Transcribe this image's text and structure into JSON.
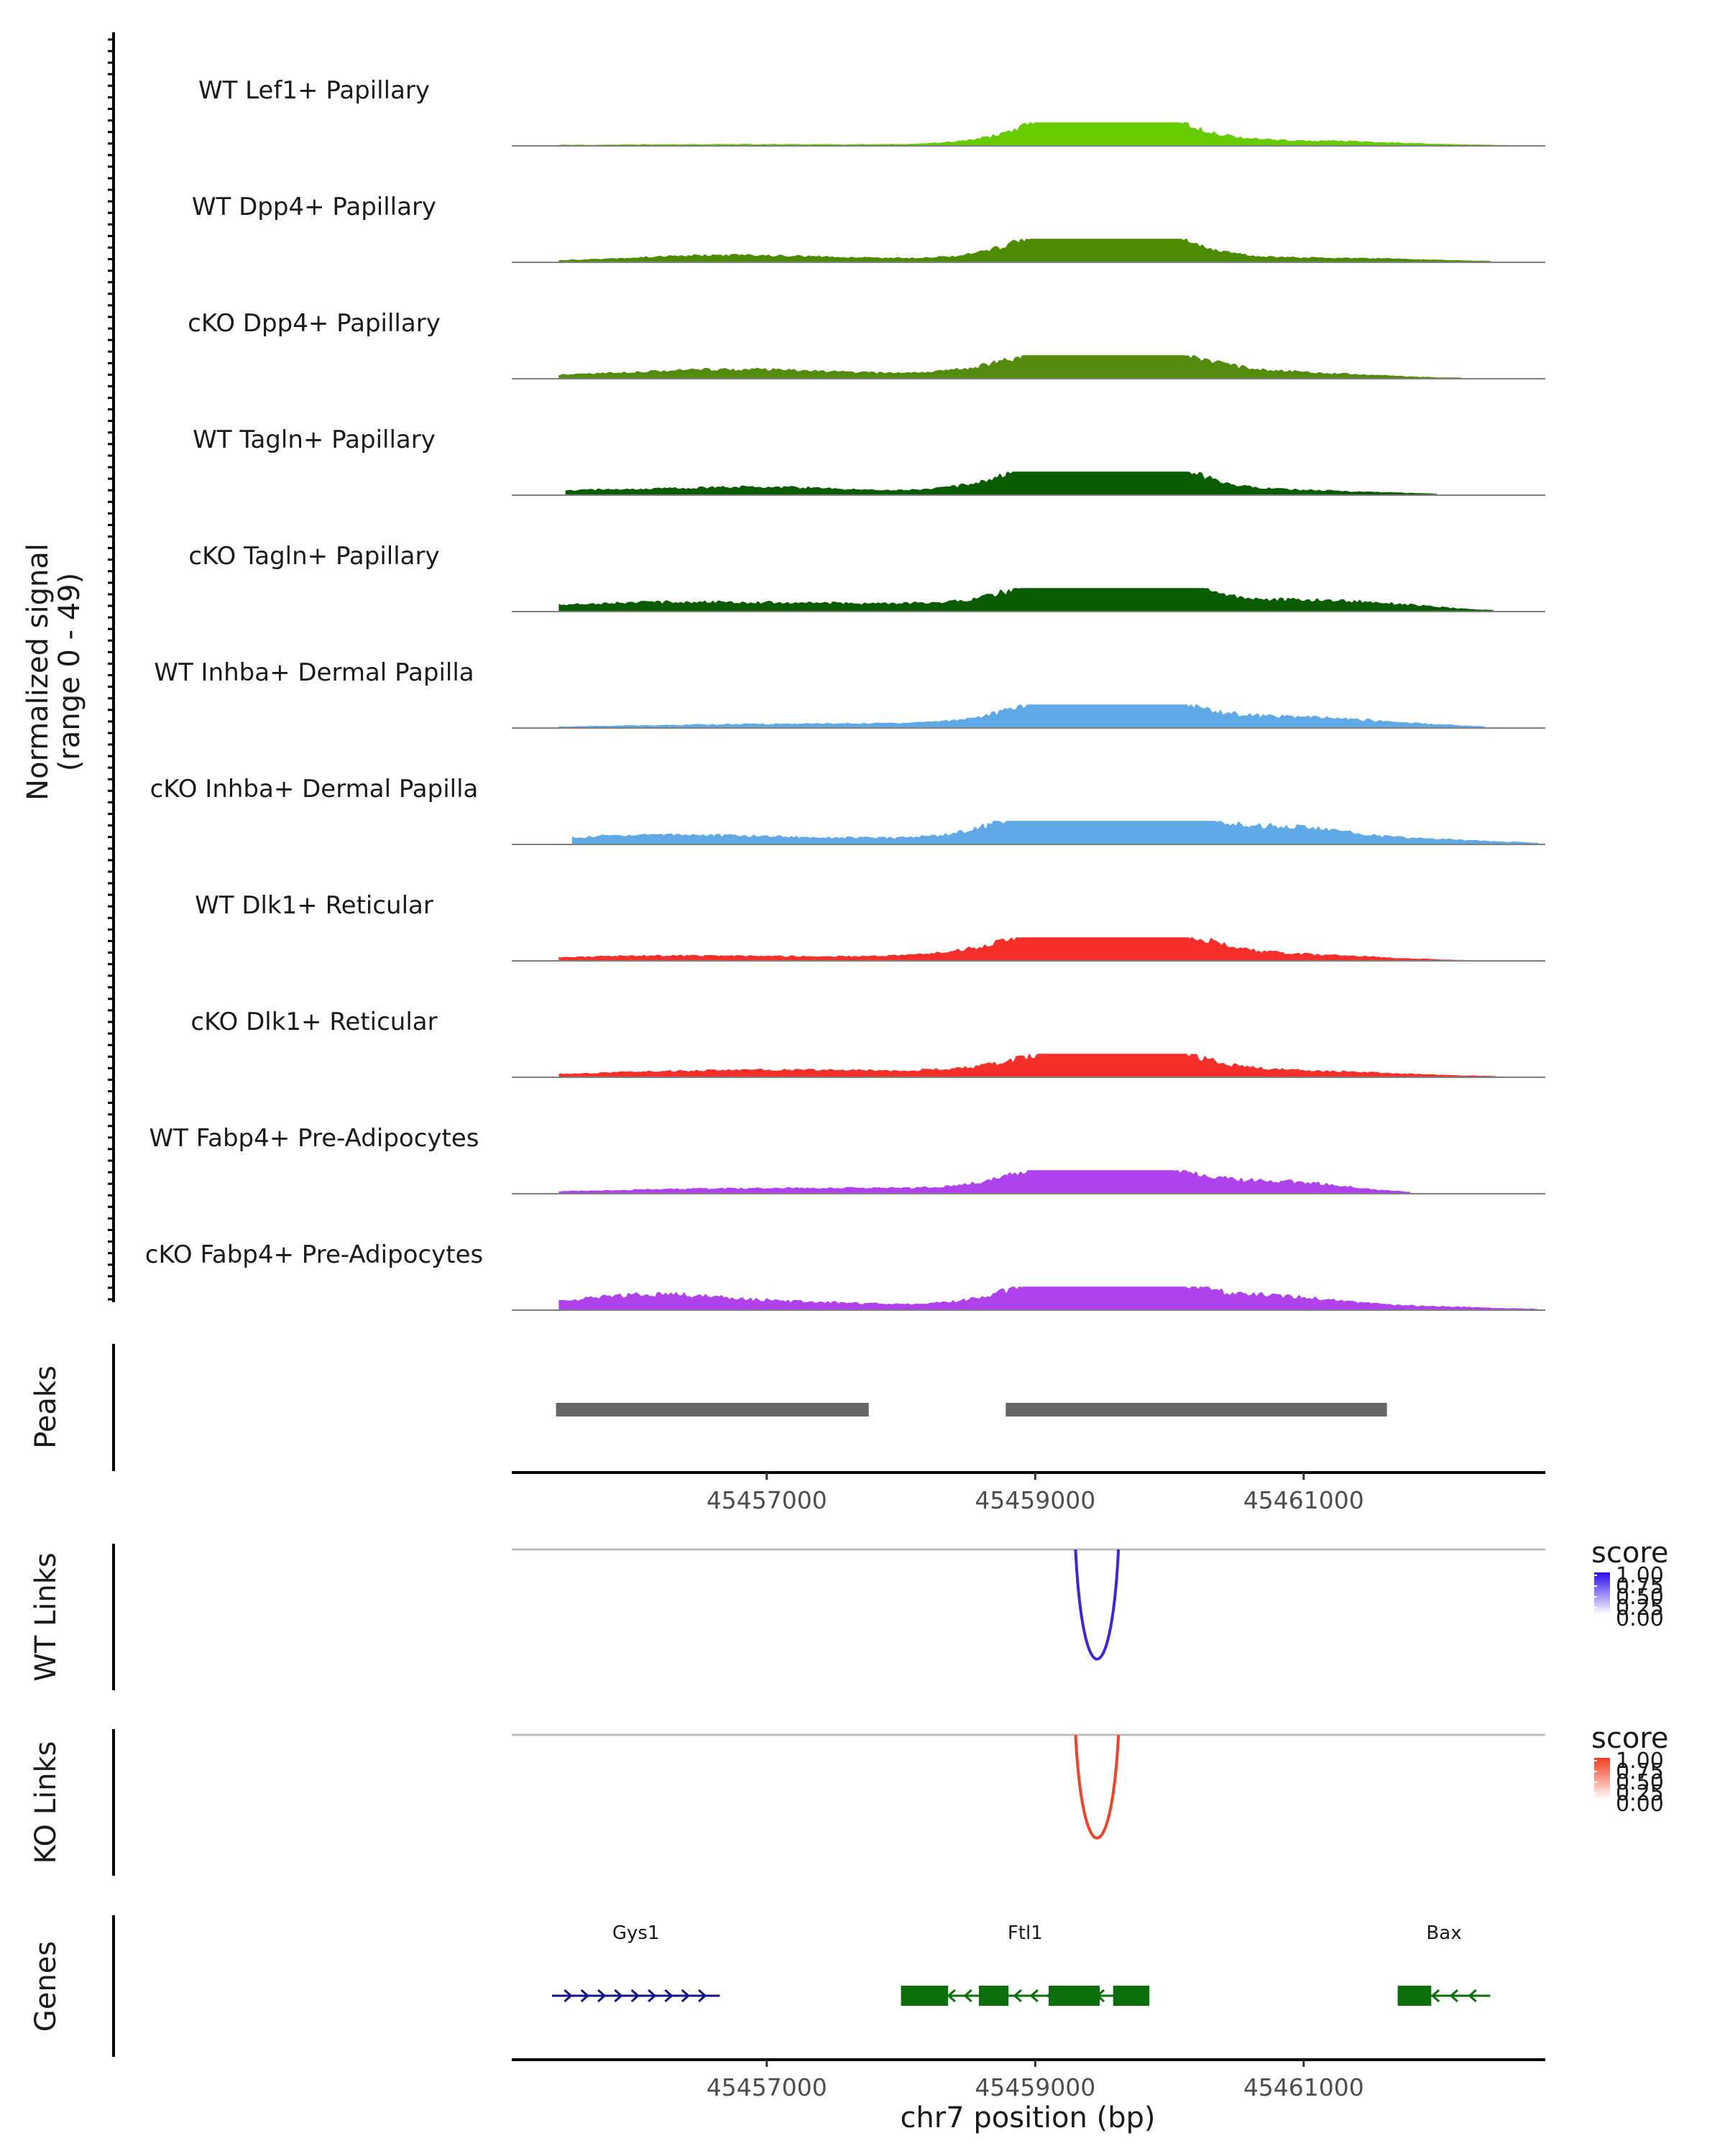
{
  "chart_data": {
    "type": "area",
    "title": "",
    "region": "chr7",
    "xlim": [
      45455100,
      45462800
    ],
    "x_ticks": [
      45457000,
      45459000,
      45461000
    ],
    "x_tick_labels": [
      "45457000",
      "45459000",
      "45461000"
    ],
    "xlabel": "chr7 position (bp)",
    "ylabel_line1": "Normalized signal",
    "ylabel_line2": "(range 0 - 49)",
    "ylim": [
      0,
      49
    ],
    "tracks": [
      {
        "name": "WT Lef1+ Papillary",
        "color": "#66cc00",
        "start": 45455450,
        "end": 45462520,
        "peaks": [
          [
            45456500,
            1.5,
            100
          ],
          [
            45457200,
            1.2,
            90
          ],
          [
            45459100,
            7,
            60
          ],
          [
            45459370,
            13,
            45
          ],
          [
            45459500,
            38,
            45
          ],
          [
            45459580,
            22,
            40
          ],
          [
            45459750,
            15,
            40
          ],
          [
            45460000,
            3,
            40
          ],
          [
            45460450,
            3,
            30
          ],
          [
            45460950,
            7,
            50
          ],
          [
            45461900,
            1.5,
            60
          ],
          [
            45461400,
            2,
            40
          ]
        ]
      },
      {
        "name": "WT Dpp4+ Papillary",
        "color": "#4d8c00",
        "start": 45455450,
        "end": 45462400,
        "peaks": [
          [
            45456300,
            3,
            80
          ],
          [
            45456600,
            4,
            70
          ],
          [
            45456750,
            6,
            60
          ],
          [
            45457400,
            2,
            60
          ],
          [
            45457800,
            2,
            40
          ],
          [
            45458200,
            2,
            50
          ],
          [
            45458800,
            3,
            50
          ],
          [
            45459100,
            10,
            50
          ],
          [
            45459370,
            22,
            35
          ],
          [
            45459480,
            39,
            45
          ],
          [
            45459580,
            25,
            40
          ],
          [
            45459790,
            14,
            40
          ],
          [
            45460000,
            4,
            40
          ],
          [
            45460500,
            3,
            50
          ],
          [
            45460950,
            5,
            50
          ],
          [
            45461500,
            3,
            40
          ],
          [
            45462000,
            2,
            40
          ]
        ]
      },
      {
        "name": "cKO Dpp4+ Papillary",
        "color": "#538c0d",
        "start": 45455450,
        "end": 45462180,
        "peaks": [
          [
            45455700,
            3,
            80
          ],
          [
            45456100,
            3,
            80
          ],
          [
            45456400,
            4,
            70
          ],
          [
            45456800,
            8,
            60
          ],
          [
            45457300,
            4,
            60
          ],
          [
            45457750,
            3,
            50
          ],
          [
            45458300,
            3,
            50
          ],
          [
            45458900,
            3,
            40
          ],
          [
            45459150,
            10,
            50
          ],
          [
            45459370,
            13,
            40
          ],
          [
            45459500,
            35,
            60
          ],
          [
            45459620,
            20,
            40
          ],
          [
            45459800,
            14,
            40
          ],
          [
            45460100,
            3,
            40
          ],
          [
            45460500,
            3,
            40
          ],
          [
            45460950,
            7,
            50
          ],
          [
            45461300,
            3,
            50
          ]
        ]
      },
      {
        "name": "WT Tagln+ Papillary",
        "color": "#0a5c00",
        "start": 45455500,
        "end": 45462000,
        "peaks": [
          [
            45455600,
            5,
            40
          ],
          [
            45456000,
            2,
            60
          ],
          [
            45456300,
            3,
            60
          ],
          [
            45456800,
            8,
            60
          ],
          [
            45457150,
            5,
            50
          ],
          [
            45457600,
            3,
            50
          ],
          [
            45458150,
            2,
            40
          ],
          [
            45458500,
            2,
            40
          ],
          [
            45459000,
            14,
            50
          ],
          [
            45459270,
            12,
            40
          ],
          [
            45459420,
            22,
            40
          ],
          [
            45459520,
            37,
            50
          ],
          [
            45459620,
            20,
            40
          ],
          [
            45459860,
            13,
            40
          ],
          [
            45460200,
            3,
            40
          ],
          [
            45460600,
            3,
            40
          ],
          [
            45460900,
            4,
            40
          ],
          [
            45461100,
            2,
            40
          ],
          [
            45461600,
            3,
            40
          ]
        ]
      },
      {
        "name": "cKO Tagln+ Papillary",
        "color": "#0a5c00",
        "start": 45455450,
        "end": 45462420,
        "peaks": [
          [
            45455650,
            6,
            70
          ],
          [
            45456000,
            5,
            80
          ],
          [
            45456400,
            5,
            80
          ],
          [
            45456800,
            4,
            70
          ],
          [
            45457200,
            4,
            60
          ],
          [
            45457600,
            4,
            60
          ],
          [
            45458000,
            4,
            50
          ],
          [
            45458400,
            4,
            50
          ],
          [
            45458900,
            5,
            50
          ],
          [
            45459150,
            11,
            50
          ],
          [
            45459430,
            45,
            45
          ],
          [
            45459560,
            26,
            40
          ],
          [
            45459700,
            16,
            40
          ],
          [
            45459850,
            20,
            40
          ],
          [
            45460100,
            4,
            40
          ],
          [
            45460500,
            5,
            40
          ],
          [
            45460980,
            13,
            50
          ],
          [
            45461300,
            6,
            50
          ],
          [
            45461700,
            6,
            40
          ]
        ]
      },
      {
        "name": "WT Inhba+ Dermal Papilla",
        "color": "#5fa9e6",
        "start": 45455450,
        "end": 45462350,
        "peaks": [
          [
            45456200,
            2,
            80
          ],
          [
            45456600,
            2,
            70
          ],
          [
            45457000,
            2,
            60
          ],
          [
            45457400,
            2,
            60
          ],
          [
            45457850,
            3,
            50
          ],
          [
            45458300,
            2,
            50
          ],
          [
            45458750,
            2,
            40
          ],
          [
            45459050,
            10,
            60
          ],
          [
            45459300,
            8,
            50
          ],
          [
            45459430,
            32,
            40
          ],
          [
            45459560,
            34,
            45
          ],
          [
            45459820,
            13,
            40
          ],
          [
            45460100,
            5,
            40
          ],
          [
            45460500,
            5,
            40
          ],
          [
            45460930,
            14,
            50
          ],
          [
            45461450,
            6,
            50
          ],
          [
            45461900,
            2,
            40
          ]
        ]
      },
      {
        "name": "cKO Inhba+ Dermal Papilla",
        "color": "#5fa9e6",
        "start": 45455550,
        "end": 45462750,
        "peaks": [
          [
            45455700,
            8,
            50
          ],
          [
            45456000,
            5,
            40
          ],
          [
            45456400,
            6,
            50
          ],
          [
            45456700,
            5,
            50
          ],
          [
            45457000,
            4,
            50
          ],
          [
            45457400,
            5,
            50
          ],
          [
            45457800,
            4,
            40
          ],
          [
            45458200,
            3,
            40
          ],
          [
            45458700,
            4,
            40
          ],
          [
            45459000,
            14,
            50
          ],
          [
            45459250,
            20,
            50
          ],
          [
            45459420,
            33,
            40
          ],
          [
            45459530,
            37,
            45
          ],
          [
            45459800,
            16,
            40
          ],
          [
            45460100,
            8,
            40
          ],
          [
            45460450,
            10,
            40
          ],
          [
            45460800,
            12,
            40
          ],
          [
            45461050,
            15,
            40
          ],
          [
            45461500,
            5,
            50
          ],
          [
            45461950,
            4,
            40
          ],
          [
            45462300,
            3,
            40
          ]
        ]
      },
      {
        "name": "WT Dlk1+ Reticular",
        "color": "#f5302b",
        "start": 45455450,
        "end": 45462200,
        "peaks": [
          [
            45455650,
            3,
            70
          ],
          [
            45456000,
            3,
            60
          ],
          [
            45456400,
            3,
            60
          ],
          [
            45456800,
            3,
            60
          ],
          [
            45457300,
            2,
            50
          ],
          [
            45457800,
            4,
            50
          ],
          [
            45458200,
            2,
            40
          ],
          [
            45458800,
            2,
            50
          ],
          [
            45459050,
            9,
            50
          ],
          [
            45459350,
            15,
            50
          ],
          [
            45459480,
            38,
            60
          ],
          [
            45459650,
            20,
            40
          ],
          [
            45459850,
            15,
            40
          ],
          [
            45460150,
            3,
            40
          ],
          [
            45460550,
            2,
            40
          ],
          [
            45460950,
            8,
            50
          ],
          [
            45461450,
            3,
            40
          ]
        ]
      },
      {
        "name": "cKO Dlk1+ Reticular",
        "color": "#f5302b",
        "start": 45455450,
        "end": 45462450,
        "peaks": [
          [
            45455800,
            3,
            80
          ],
          [
            45456300,
            3,
            70
          ],
          [
            45456800,
            5,
            80
          ],
          [
            45457300,
            5,
            80
          ],
          [
            45457800,
            4,
            60
          ],
          [
            45458500,
            3,
            60
          ],
          [
            45459000,
            6,
            60
          ],
          [
            45459320,
            10,
            50
          ],
          [
            45459500,
            33,
            50
          ],
          [
            45459640,
            22,
            40
          ],
          [
            45459900,
            12,
            40
          ],
          [
            45460200,
            3,
            40
          ],
          [
            45460550,
            3,
            40
          ],
          [
            45460930,
            9,
            50
          ],
          [
            45461450,
            3,
            40
          ],
          [
            45462000,
            2,
            40
          ]
        ]
      },
      {
        "name": "WT Fabp4+ Pre-Adipocytes",
        "color": "#b042ee",
        "start": 45455450,
        "end": 45461800,
        "peaks": [
          [
            45455700,
            2,
            60
          ],
          [
            45456100,
            2,
            60
          ],
          [
            45456400,
            2,
            60
          ],
          [
            45456800,
            4,
            60
          ],
          [
            45457300,
            3,
            50
          ],
          [
            45457800,
            6,
            50
          ],
          [
            45458500,
            3,
            50
          ],
          [
            45459000,
            4,
            50
          ],
          [
            45459150,
            10,
            50
          ],
          [
            45459420,
            26,
            40
          ],
          [
            45459530,
            33,
            50
          ],
          [
            45459800,
            15,
            50
          ],
          [
            45460100,
            5,
            40
          ],
          [
            45460450,
            3,
            40
          ],
          [
            45460920,
            16,
            40
          ],
          [
            45461200,
            4,
            40
          ]
        ]
      },
      {
        "name": "cKO Fabp4+ Pre-Adipocytes",
        "color": "#b042ee",
        "start": 45455450,
        "end": 45462750,
        "peaks": [
          [
            45455700,
            6,
            80
          ],
          [
            45455950,
            10,
            50
          ],
          [
            45456200,
            8,
            50
          ],
          [
            45456450,
            6,
            60
          ],
          [
            45456800,
            4,
            60
          ],
          [
            45457200,
            5,
            60
          ],
          [
            45457600,
            4,
            50
          ],
          [
            45458000,
            3,
            50
          ],
          [
            45458600,
            3,
            50
          ],
          [
            45459050,
            8,
            50
          ],
          [
            45459300,
            16,
            50
          ],
          [
            45459420,
            28,
            40
          ],
          [
            45459550,
            30,
            50
          ],
          [
            45459800,
            10,
            50
          ],
          [
            45460100,
            8,
            50
          ],
          [
            45460400,
            6,
            50
          ],
          [
            45460800,
            5,
            40
          ],
          [
            45460960,
            12,
            40
          ],
          [
            45461400,
            4,
            50
          ],
          [
            45461900,
            3,
            40
          ],
          [
            45462350,
            2,
            40
          ]
        ]
      }
    ],
    "peaks_track": {
      "label": "Peaks",
      "color": "#666666",
      "regions": [
        [
          45455430,
          45457760
        ],
        [
          45458780,
          45461620
        ]
      ]
    },
    "links_tracks": [
      {
        "label": "WT Links",
        "color": "#3d25e3",
        "anchors": [
          45459300,
          45459620
        ],
        "score": 0.85,
        "legend": {
          "title": "score",
          "low_color": "#ffffff",
          "high_color": "#2a0cf0",
          "labels": [
            "1.00",
            "0.75",
            "0.50",
            "0.25",
            "0.00"
          ]
        }
      },
      {
        "label": "KO Links",
        "color": "#f2432a",
        "anchors": [
          45459300,
          45459620
        ],
        "score": 0.8,
        "legend": {
          "title": "score",
          "low_color": "#ffffff",
          "high_color": "#f03a1e",
          "labels": [
            "1.00",
            "0.75",
            "0.50",
            "0.25",
            "0.00"
          ]
        }
      }
    ],
    "genes_track": {
      "label": "Genes",
      "genes": [
        {
          "name": "Gys1",
          "strand": "+",
          "color": "#14148a",
          "start": 45455400,
          "end": 45456650,
          "exons": []
        },
        {
          "name": "Ftl1",
          "strand": "-",
          "color": "#0a6e0a",
          "start": 45458000,
          "end": 45459850,
          "exons": [
            [
              45458000,
              45458350
            ],
            [
              45458580,
              45458800
            ],
            [
              45459100,
              45459480
            ],
            [
              45459580,
              45459850
            ]
          ]
        },
        {
          "name": "Bax",
          "strand": "-",
          "color": "#0a6e0a",
          "start": 45461700,
          "end": 45462390,
          "exons": [
            [
              45461700,
              45461950
            ]
          ]
        }
      ]
    }
  }
}
